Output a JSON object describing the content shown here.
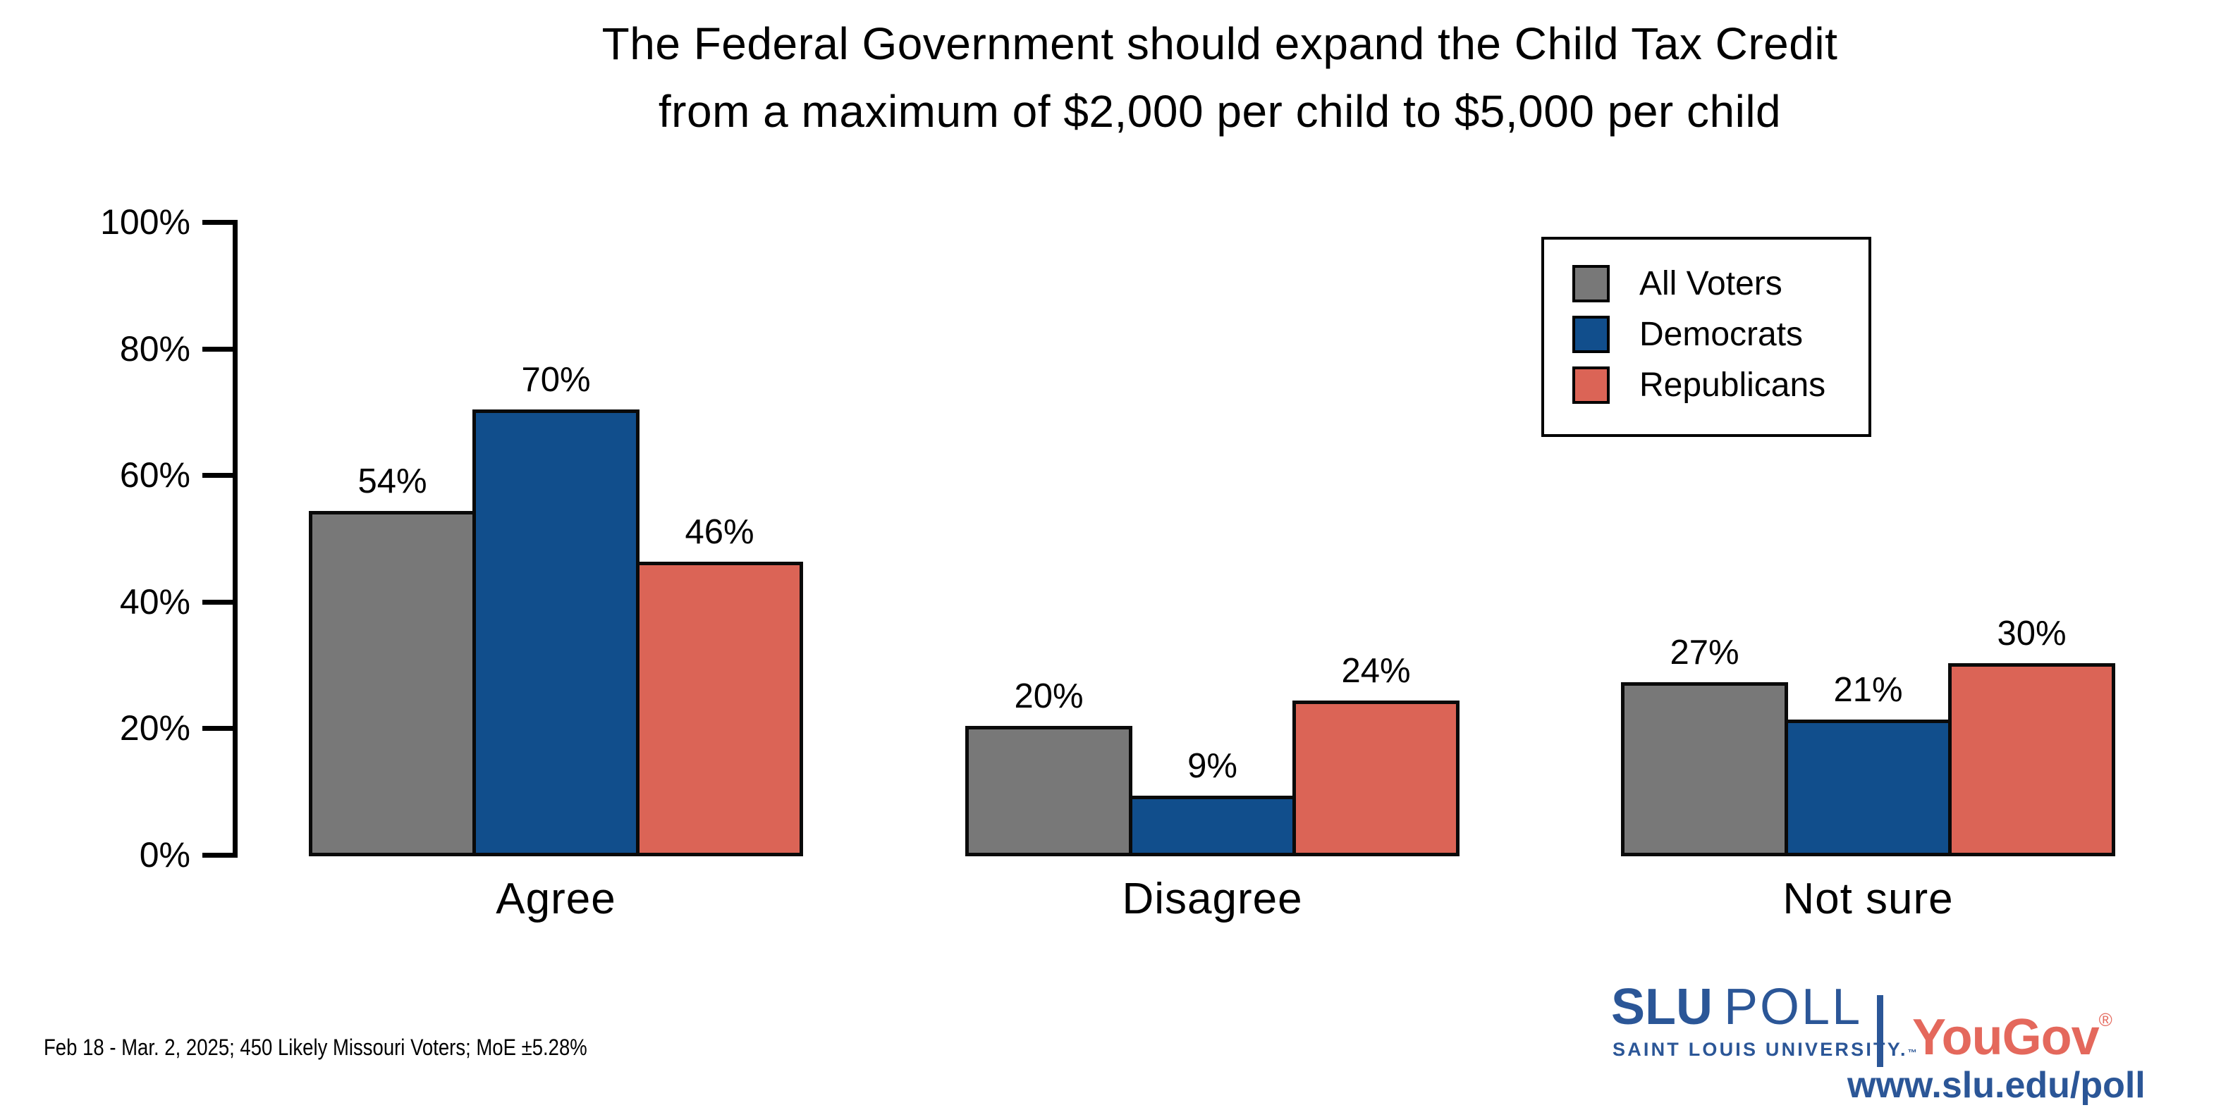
{
  "title": {
    "line1": "The Federal Government should expand the Child Tax Credit",
    "line2": "from a maximum of $2,000 per child to $5,000 per child"
  },
  "colors": {
    "all_voters_gray": "#787878",
    "democrats_blue": "#114E8C",
    "republicans_red": "#DB6456",
    "bar_border": "#0a0a0a",
    "slu_blue": "#2B5697",
    "yougov_salmon": "#E4685C"
  },
  "chart_data": {
    "type": "bar",
    "title": "The Federal Government should expand the Child Tax Credit from a maximum of $2,000 per child to $5,000 per child",
    "categories": [
      "Agree",
      "Disagree",
      "Not sure"
    ],
    "series": [
      {
        "name": "All Voters",
        "color": "#787878",
        "values": [
          54,
          20,
          27
        ]
      },
      {
        "name": "Democrats",
        "color": "#114E8C",
        "values": [
          70,
          9,
          21
        ]
      },
      {
        "name": "Republicans",
        "color": "#DB6456",
        "values": [
          46,
          24,
          30
        ]
      }
    ],
    "value_labels": [
      [
        "54%",
        "20%",
        "27%"
      ],
      [
        "70%",
        "9%",
        "21%"
      ],
      [
        "46%",
        "24%",
        "30%"
      ]
    ],
    "xlabel": "",
    "ylabel": "",
    "y_ticks": [
      "0%",
      "20%",
      "40%",
      "60%",
      "80%",
      "100%"
    ],
    "ylim": [
      0,
      100
    ],
    "grid": false,
    "legend_position": "top-right"
  },
  "legend": {
    "items": [
      {
        "label": "All Voters"
      },
      {
        "label": "Democrats"
      },
      {
        "label": "Republicans"
      }
    ]
  },
  "footer": {
    "source_note": "Feb 18 - Mar. 2, 2025; 450 Likely Missouri Voters; MoE ±5.28%"
  },
  "branding": {
    "slu": "SLU",
    "poll": "POLL",
    "subtitle": "SAINT LOUIS UNIVERSITY.",
    "tm": "™",
    "yougov": "YouGov",
    "registered": "®",
    "url": "www.slu.edu/poll"
  }
}
